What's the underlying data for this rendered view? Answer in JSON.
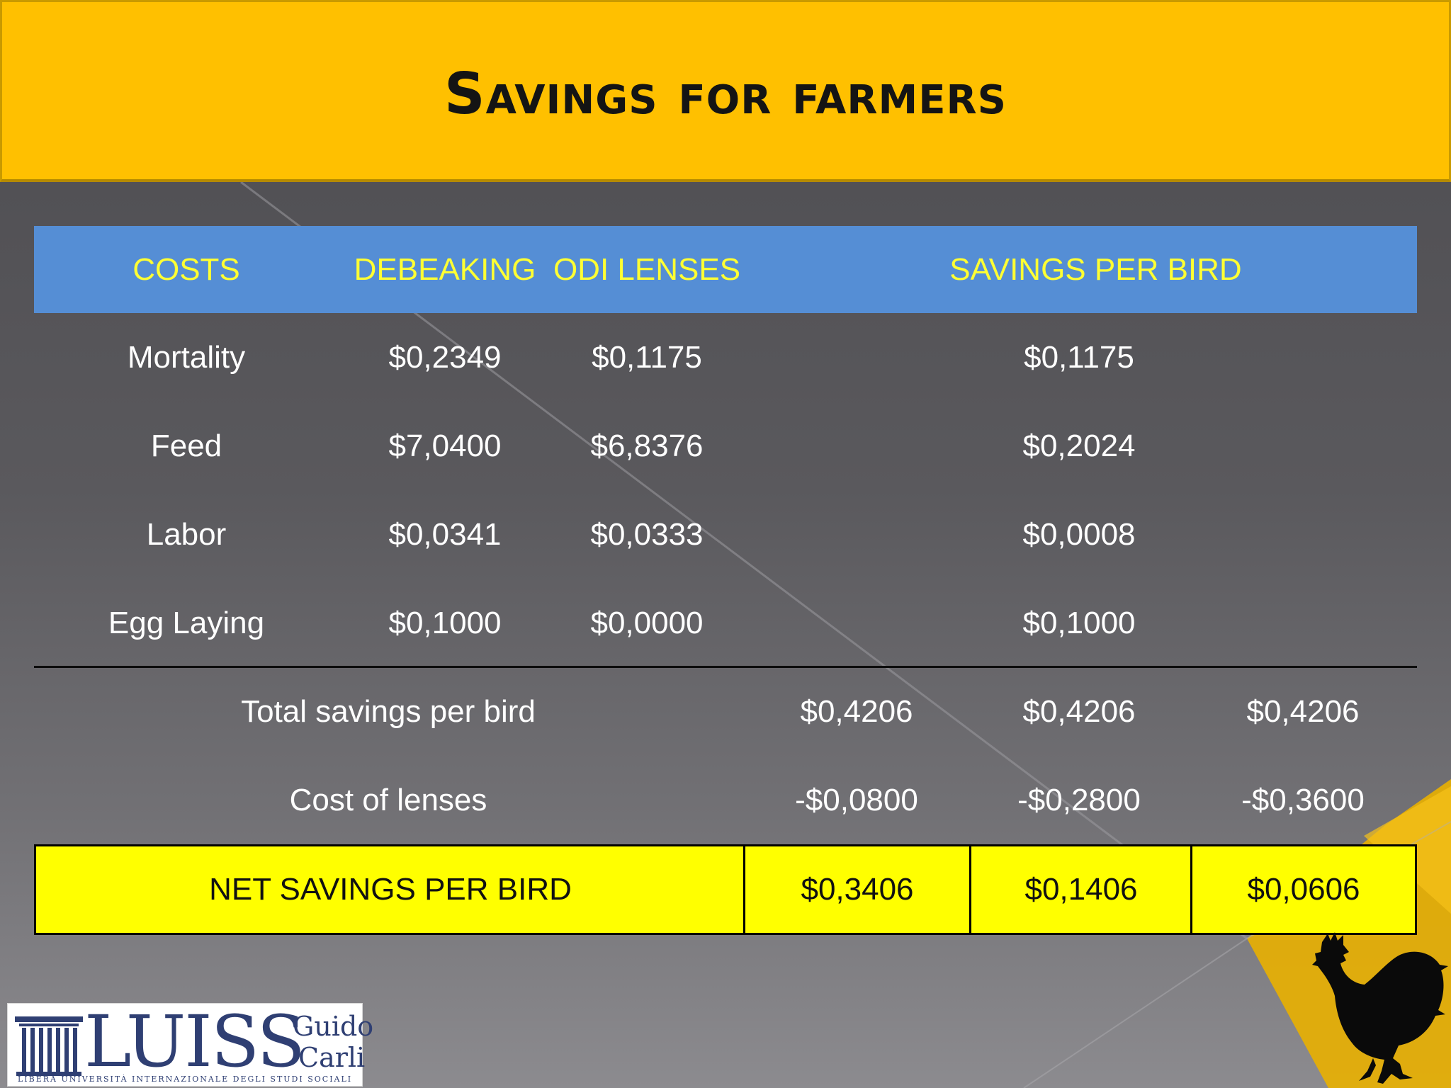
{
  "slide": {
    "title": "Savings for farmers"
  },
  "table": {
    "headers": {
      "costs": "COSTS",
      "debeaking": "DEBEAKING",
      "odi_lenses": "ODI LENSES",
      "savings_per_bird": "SAVINGS PER BIRD"
    },
    "rows": [
      {
        "label": "Mortality",
        "debeaking": "$0,2349",
        "odi": "$0,1175",
        "savings": "$0,1175"
      },
      {
        "label": "Feed",
        "debeaking": "$7,0400",
        "odi": "$6,8376",
        "savings": "$0,2024"
      },
      {
        "label": "Labor",
        "debeaking": "$0,0341",
        "odi": "$0,0333",
        "savings": "$0,0008"
      },
      {
        "label": "Egg Laying",
        "debeaking": "$0,1000",
        "odi": "$0,0000",
        "savings": "$0,1000"
      }
    ],
    "total": {
      "label": "Total savings per bird",
      "values": [
        "$0,4206",
        "$0,4206",
        "$0,4206"
      ]
    },
    "cost_of_lenses": {
      "label": "Cost of lenses",
      "values": [
        "-$0,0800",
        "-$0,2800",
        "-$0,3600"
      ]
    },
    "net": {
      "label": "NET SAVINGS PER BIRD",
      "values": [
        "$0,3406",
        "$0,1406",
        "$0,0606"
      ]
    }
  },
  "logo": {
    "word": "LUISS",
    "guido": "Guido",
    "carli": "Carli",
    "subtitle": "LIBERA UNIVERSITÀ INTERNAZIONALE DEGLI STUDI SOCIALI"
  },
  "colors": {
    "header_bg": "#ffc000",
    "table_header_bg": "#558ed5",
    "table_header_text": "#ffff33",
    "net_row_bg": "#ffff00",
    "logo_blue": "#2f3f73"
  },
  "icons": {
    "rooster": "rooster-icon",
    "pillars": "pillars-icon"
  }
}
